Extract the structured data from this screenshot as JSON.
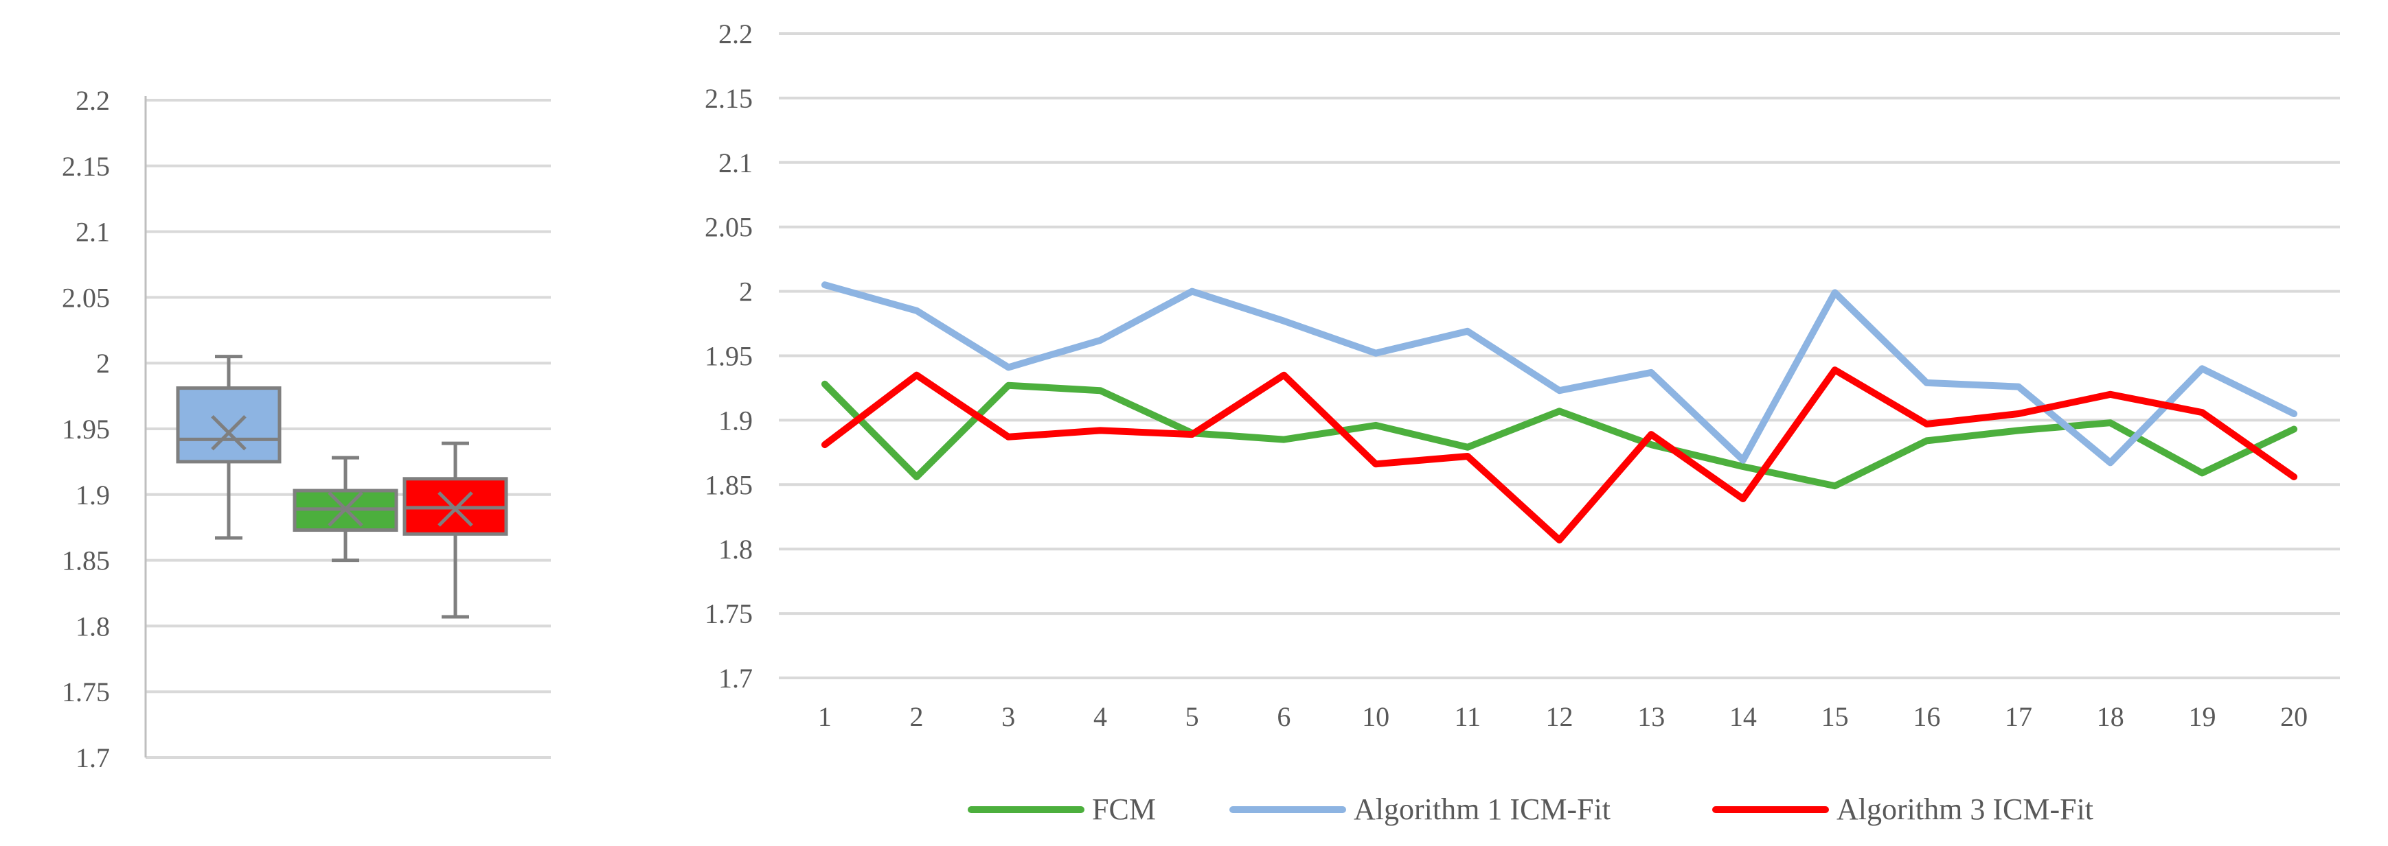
{
  "chart_data": [
    {
      "type": "box",
      "title": "",
      "xlabel": "",
      "ylabel": "",
      "ylim": [
        1.7,
        2.2
      ],
      "yticks": [
        "2.2",
        "2.15",
        "2.1",
        "2.05",
        "2",
        "1.95",
        "1.9",
        "1.85",
        "1.8",
        "1.75",
        "1.7"
      ],
      "grid": "horizontal",
      "series": [
        {
          "whisker_low": 1.867,
          "q1": 1.925,
          "median": 1.942,
          "q3": 1.981,
          "whisker_high": 2.005,
          "mean": 1.947,
          "color": "#8DB4E2"
        },
        {
          "whisker_low": 1.85,
          "q1": 1.873,
          "median": 1.889,
          "q3": 1.903,
          "whisker_high": 1.928,
          "mean": 1.889,
          "color": "#4CAF3D"
        },
        {
          "whisker_low": 1.807,
          "q1": 1.87,
          "median": 1.89,
          "q3": 1.912,
          "whisker_high": 1.939,
          "mean": 1.889,
          "color": "#FF0000"
        }
      ]
    },
    {
      "type": "line",
      "title": "",
      "xlabel": "",
      "ylabel": "",
      "ylim": [
        1.7,
        2.2
      ],
      "yticks": [
        "2.2",
        "2.15",
        "2.1",
        "2.05",
        "2",
        "1.95",
        "1.9",
        "1.85",
        "1.8",
        "1.75",
        "1.7"
      ],
      "grid": "horizontal",
      "legend": "bottom",
      "categories": [
        "1",
        "2",
        "3",
        "4",
        "5",
        "6",
        "10",
        "11",
        "12",
        "13",
        "14",
        "15",
        "16",
        "17",
        "18",
        "19",
        "20"
      ],
      "series": [
        {
          "name": "FCM",
          "color": "#4CAF3D",
          "values": [
            1.928,
            1.856,
            1.927,
            1.923,
            1.89,
            1.885,
            1.896,
            1.879,
            1.907,
            1.881,
            1.864,
            1.849,
            1.884,
            1.892,
            1.898,
            1.859,
            1.893
          ]
        },
        {
          "name": "Algorithm 1 ICM-Fit",
          "color": "#8DB4E2",
          "values": [
            2.005,
            1.985,
            1.941,
            1.962,
            2.0,
            1.977,
            1.952,
            1.969,
            1.923,
            1.937,
            1.869,
            1.999,
            1.929,
            1.926,
            1.867,
            1.94,
            1.905
          ]
        },
        {
          "name": "Algorithm 3 ICM-Fit",
          "color": "#FF0000",
          "values": [
            1.881,
            1.935,
            1.887,
            1.892,
            1.889,
            1.935,
            1.866,
            1.872,
            1.807,
            1.889,
            1.839,
            1.939,
            1.897,
            1.905,
            1.92,
            1.906,
            1.856
          ]
        }
      ]
    }
  ]
}
